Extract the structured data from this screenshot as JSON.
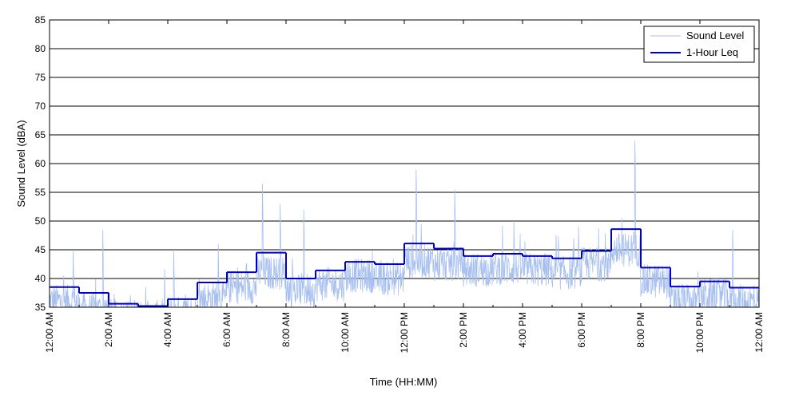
{
  "chart_data": {
    "type": "line",
    "xlabel": "Time (HH:MM)",
    "ylabel": "Sound Level (dBA)",
    "ylim": [
      35,
      85
    ],
    "xlim_hours": [
      0,
      24
    ],
    "grid": "horizontal",
    "legend_position": "top-right",
    "y_ticks": [
      "35",
      "40",
      "45",
      "50",
      "55",
      "60",
      "65",
      "70",
      "75",
      "80",
      "85"
    ],
    "x_ticks": [
      "12:00 AM",
      "2:00 AM",
      "4:00 AM",
      "6:00 AM",
      "8:00 AM",
      "10:00 AM",
      "12:00 PM",
      "2:00 PM",
      "4:00 PM",
      "6:00 PM",
      "8:00 PM",
      "10:00 PM",
      "12:00 AM"
    ],
    "colors": {
      "sound_level": "#a8c0f0",
      "leq": "#0000cc",
      "grid": "#000000"
    },
    "series": [
      {
        "name": "Sound Level",
        "hour_base_levels": [
          38,
          36.5,
          35.5,
          35.3,
          36,
          38.5,
          40.5,
          43,
          40,
          41,
          42.5,
          42,
          45,
          44.5,
          43.5,
          43.8,
          43.5,
          43,
          44.5,
          47,
          41.5,
          38,
          39,
          38
        ],
        "peaks": [
          {
            "x": 0.8,
            "y": 45
          },
          {
            "x": 1.8,
            "y": 48.5
          },
          {
            "x": 4.2,
            "y": 45
          },
          {
            "x": 5.7,
            "y": 46
          },
          {
            "x": 7.2,
            "y": 56.5
          },
          {
            "x": 7.8,
            "y": 53
          },
          {
            "x": 8.6,
            "y": 52
          },
          {
            "x": 12.4,
            "y": 59
          },
          {
            "x": 13.7,
            "y": 55.5
          },
          {
            "x": 15.7,
            "y": 50
          },
          {
            "x": 17.9,
            "y": 49
          },
          {
            "x": 19.8,
            "y": 64
          },
          {
            "x": 23.1,
            "y": 48.5
          }
        ]
      },
      {
        "name": "1-Hour Leq",
        "hours": [
          0,
          1,
          2,
          3,
          4,
          5,
          6,
          7,
          8,
          9,
          10,
          11,
          12,
          13,
          14,
          15,
          16,
          17,
          18,
          19,
          20,
          21,
          22,
          23
        ],
        "values": [
          38.5,
          37.5,
          35.6,
          35.2,
          36.4,
          39.3,
          41.1,
          44.5,
          40.0,
          41.4,
          42.9,
          42.5,
          46.1,
          45.2,
          43.9,
          44.3,
          43.9,
          43.5,
          44.8,
          48.6,
          41.9,
          38.6,
          39.5,
          38.4
        ]
      }
    ]
  }
}
